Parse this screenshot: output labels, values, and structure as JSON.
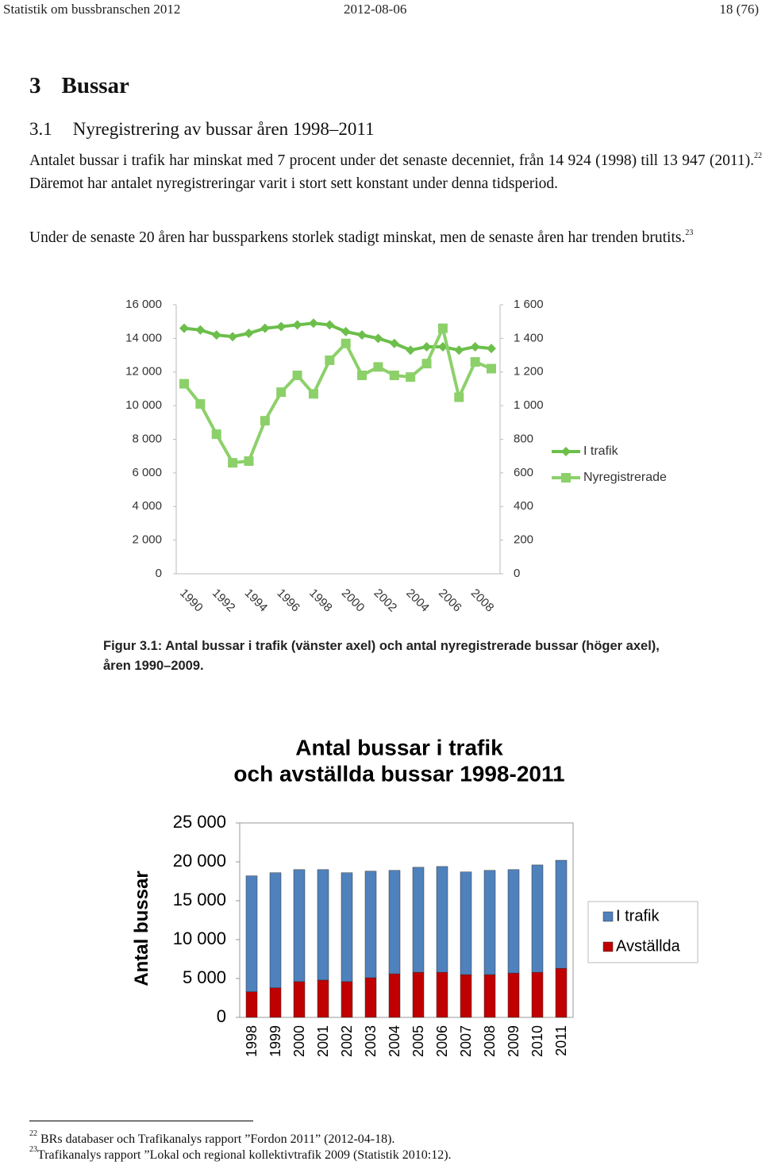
{
  "header": {
    "left": "Statistik om bussbranschen 2012",
    "center": "2012-08-06",
    "right": "18 (76)"
  },
  "heading1": {
    "number": "3",
    "title": "Bussar"
  },
  "heading2": {
    "number": "3.1",
    "title": "Nyregistrering av bussar åren 1998–2011"
  },
  "paragraphs": [
    {
      "text_before": "Antalet bussar i trafik har minskat med 7 procent under det senaste decenniet, från 14 924 (1998) till 13 947 (2011).",
      "note": "22",
      "text_after": " Däremot har antalet nyregistreringar varit i stort sett konstant under denna tidsperiod."
    },
    {
      "text_before": "Under de senaste 20 åren har bussparkens storlek stadigt minskat, men de senaste åren har trenden brutits.",
      "note": "23"
    }
  ],
  "figure_caption": "Figur 3.1: Antal bussar i trafik (vänster axel) och antal nyregistrerade bussar (höger axel), åren 1990–2009.",
  "footnotes": [
    {
      "number": "22",
      "text": "BRs databaser och Trafikanalys rapport ”Fordon 2011” (2012-04-18)."
    },
    {
      "number": "23",
      "text": "Trafikanalys rapport ”Lokal och regional kollektivtrafik 2009 (Statistik 2010:12)."
    }
  ],
  "chart_data": [
    {
      "type": "line",
      "categories": [
        "1990",
        null,
        "1992",
        null,
        "1994",
        null,
        "1996",
        null,
        "1998",
        null,
        "2000",
        null,
        "2002",
        null,
        "2004",
        null,
        "2006",
        null,
        "2008",
        null
      ],
      "series": [
        {
          "name": "I trafik",
          "color": "#6cbf4a",
          "marker": "diamond",
          "values": [
            14600,
            14500,
            14200,
            14100,
            14300,
            14600,
            14700,
            14800,
            14900,
            14800,
            14400,
            14200,
            14000,
            13700,
            13300,
            13500,
            13500,
            13300,
            13500,
            13400
          ]
        },
        {
          "name": "Nyregistrerade",
          "color": "#8cd06a",
          "marker": "square",
          "axis": "y2",
          "values": [
            1130,
            1010,
            830,
            660,
            670,
            910,
            1080,
            1180,
            1070,
            1270,
            1370,
            1180,
            1230,
            1180,
            1170,
            1250,
            1460,
            1050,
            1260,
            1220
          ]
        }
      ],
      "ylim": [
        0,
        16000
      ],
      "yticks": [
        0,
        {
          "value": 2000,
          "label": "2 000"
        },
        {
          "value": 4000,
          "label": "4 000"
        },
        {
          "value": 6000,
          "label": "6 000"
        },
        {
          "value": 8000,
          "label": "8 000"
        },
        {
          "value": 10000,
          "label": "10 000"
        },
        {
          "value": 12000,
          "label": "12 000"
        },
        {
          "value": 14000,
          "label": "14 000"
        },
        {
          "value": 16000,
          "label": "16 000"
        }
      ],
      "y2lim": [
        0,
        1600
      ],
      "y2ticks": [
        0,
        200,
        400,
        600,
        800,
        {
          "value": 1000,
          "label": "1 000"
        },
        {
          "value": 1200,
          "label": "1 200"
        },
        {
          "value": 1400,
          "label": "1 400"
        },
        {
          "value": 1600,
          "label": "1 600"
        }
      ],
      "legend": "right"
    },
    {
      "type": "bar",
      "stacked": true,
      "title": [
        "Antal bussar i trafik",
        "och avställda bussar 1998-2011"
      ],
      "y_label": "Antal bussar",
      "categories": [
        "1998",
        "1999",
        "2000",
        "2001",
        "2002",
        "2003",
        "2004",
        "2005",
        "2006",
        "2007",
        "2008",
        "2009",
        "2010",
        "2011"
      ],
      "series": [
        {
          "name": "I trafik",
          "color": "#4f81bd",
          "values": [
            14900,
            14800,
            14400,
            14200,
            14000,
            13700,
            13300,
            13500,
            13600,
            13200,
            13400,
            13300,
            13800,
            13900
          ]
        },
        {
          "name": "Avställda",
          "color": "#c00000",
          "values": [
            3300,
            3800,
            4600,
            4800,
            4600,
            5100,
            5600,
            5800,
            5800,
            5500,
            5500,
            5700,
            5800,
            6300
          ]
        }
      ],
      "ylim": [
        0,
        25000
      ],
      "yticks": [
        0,
        {
          "value": 5000,
          "label": "5 000"
        },
        {
          "value": 10000,
          "label": "10 000"
        },
        {
          "value": 15000,
          "label": "15 000"
        },
        {
          "value": 20000,
          "label": "20 000"
        },
        {
          "value": 25000,
          "label": "25 000"
        }
      ],
      "legend": "right"
    }
  ]
}
